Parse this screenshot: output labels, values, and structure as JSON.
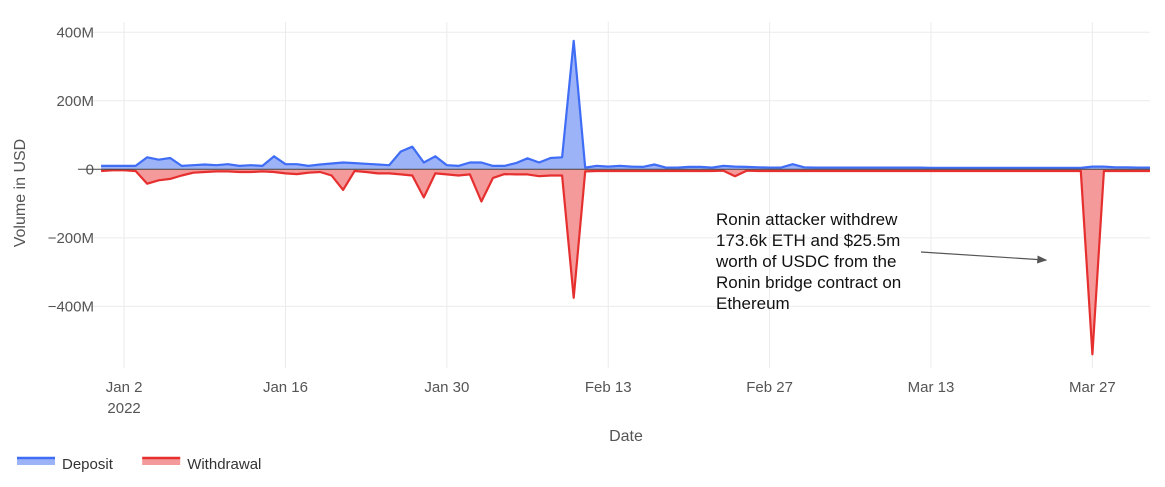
{
  "chart_data": {
    "type": "area",
    "xlabel": "Date",
    "ylabel": "Volume in USD",
    "x_start": "2021-12-31",
    "x_range": [
      "2021-12-29",
      "2022-04-01"
    ],
    "ylim": [
      -580000000,
      430000000
    ],
    "y_ticks": [
      {
        "value": 400000000,
        "label": "400M"
      },
      {
        "value": 200000000,
        "label": "200M"
      },
      {
        "value": 0,
        "label": "0"
      },
      {
        "value": -200000000,
        "label": "−200M"
      },
      {
        "value": -400000000,
        "label": "−400M"
      }
    ],
    "x_ticks": [
      {
        "date": "2022-01-02",
        "label": "Jan 2",
        "sublabel": "2022"
      },
      {
        "date": "2022-01-16",
        "label": "Jan 16",
        "sublabel": ""
      },
      {
        "date": "2022-01-30",
        "label": "Jan 30",
        "sublabel": ""
      },
      {
        "date": "2022-02-13",
        "label": "Feb 13",
        "sublabel": ""
      },
      {
        "date": "2022-02-27",
        "label": "Feb 27",
        "sublabel": ""
      },
      {
        "date": "2022-03-13",
        "label": "Mar 13",
        "sublabel": ""
      },
      {
        "date": "2022-03-27",
        "label": "Mar 27",
        "sublabel": ""
      }
    ],
    "grid": true,
    "legend_position": "bottom-left",
    "series": [
      {
        "name": "Deposit",
        "color": "#3f6df5",
        "fill": "#9db3f8",
        "values": [
          10,
          10,
          10,
          10,
          35,
          28,
          33,
          10,
          12,
          14,
          12,
          15,
          10,
          12,
          10,
          38,
          15,
          15,
          10,
          14,
          17,
          20,
          18,
          16,
          14,
          12,
          52,
          66,
          20,
          38,
          12,
          10,
          20,
          20,
          10,
          10,
          18,
          32,
          20,
          33,
          35,
          375,
          5,
          10,
          8,
          10,
          8,
          7,
          14,
          5,
          5,
          7,
          7,
          5,
          10,
          8,
          7,
          6,
          5,
          5,
          15,
          6,
          5,
          5,
          5,
          5,
          5,
          5,
          5,
          5,
          5,
          5,
          4,
          4,
          4,
          4,
          4,
          4,
          4,
          4,
          4,
          4,
          4,
          4,
          4,
          4,
          8,
          8,
          6,
          6,
          5,
          5
        ]
      },
      {
        "name": "Withdrawal",
        "color": "#e62f2f",
        "fill": "#f59a9a",
        "values": [
          -5,
          -3,
          -3,
          -5,
          -42,
          -32,
          -28,
          -18,
          -10,
          -8,
          -6,
          -6,
          -8,
          -8,
          -6,
          -8,
          -12,
          -14,
          -10,
          -8,
          -18,
          -60,
          -5,
          -8,
          -12,
          -12,
          -15,
          -18,
          -82,
          -12,
          -15,
          -18,
          -15,
          -94,
          -25,
          -14,
          -15,
          -15,
          -20,
          -18,
          -18,
          -375,
          -6,
          -5,
          -5,
          -5,
          -5,
          -5,
          -5,
          -5,
          -5,
          -5,
          -5,
          -5,
          -4,
          -20,
          -4,
          -5,
          -5,
          -5,
          -5,
          -5,
          -5,
          -5,
          -5,
          -5,
          -5,
          -5,
          -5,
          -5,
          -5,
          -5,
          -5,
          -5,
          -5,
          -5,
          -5,
          -5,
          -5,
          -5,
          -5,
          -5,
          -5,
          -5,
          -5,
          -5,
          -540,
          -5,
          -5,
          -5,
          -5,
          -5
        ]
      }
    ],
    "value_unit_multiplier": 1000000,
    "annotation": {
      "lines": [
        "Ronin attacker withdrew",
        "173.6k ETH and $25.5m",
        "worth of USDC from the",
        "Ronin bridge contract on",
        "Ethereum"
      ],
      "arrow_target_date": "2022-03-23",
      "arrow_target_value": -265000000
    },
    "colors": {
      "zero_line": "#444444",
      "grid": "#ebebeb"
    }
  }
}
